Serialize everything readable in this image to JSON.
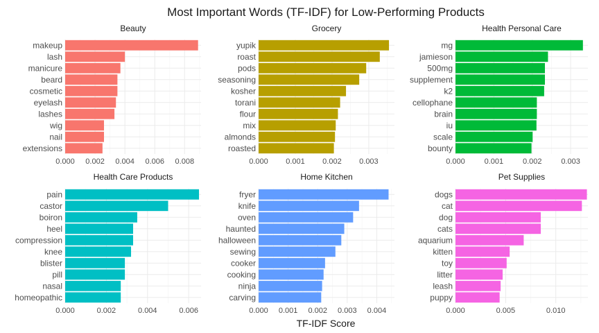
{
  "chart_data": {
    "type": "bar",
    "orientation": "horizontal",
    "title": "Most Important Words (TF-IDF) for Low-Performing Products",
    "xlabel": "TF-IDF Score",
    "ylabel": "",
    "grid": true,
    "legend": "none",
    "facets": [
      {
        "name": "Beauty",
        "color": "#F8766D",
        "xlim": [
          0,
          0.0091
        ],
        "ticks": [
          0,
          0.002,
          0.004,
          0.006,
          0.008
        ],
        "tick_labels": [
          "0.000",
          "0.002",
          "0.004",
          "0.006",
          "0.008"
        ],
        "categories": [
          "makeup",
          "lash",
          "manicure",
          "beard",
          "cosmetic",
          "eyelash",
          "lashes",
          "wig",
          "nail",
          "extensions"
        ],
        "values": [
          0.0089,
          0.004,
          0.0037,
          0.0035,
          0.0035,
          0.0034,
          0.0033,
          0.0026,
          0.0026,
          0.0025
        ]
      },
      {
        "name": "Grocery",
        "color": "#B79F00",
        "xlim": [
          0,
          0.0037
        ],
        "ticks": [
          0,
          0.001,
          0.002,
          0.003
        ],
        "tick_labels": [
          "0.000",
          "0.001",
          "0.002",
          "0.003"
        ],
        "categories": [
          "yupik",
          "roast",
          "pods",
          "seasoning",
          "kosher",
          "torani",
          "flour",
          "mix",
          "almonds",
          "roasted"
        ],
        "values": [
          0.00355,
          0.0033,
          0.00293,
          0.00274,
          0.00238,
          0.00222,
          0.00216,
          0.0021,
          0.00208,
          0.00205
        ]
      },
      {
        "name": "Health  Personal Care",
        "color": "#00BA38",
        "xlim": [
          0,
          0.00345
        ],
        "ticks": [
          0,
          0.001,
          0.002,
          0.003
        ],
        "tick_labels": [
          "0.000",
          "0.001",
          "0.002",
          "0.003"
        ],
        "categories": [
          "mg",
          "jamieson",
          "500mg",
          "supplement",
          "k2",
          "cellophane",
          "brain",
          "iu",
          "scale",
          "bounty"
        ],
        "values": [
          0.00332,
          0.00241,
          0.00233,
          0.00233,
          0.00231,
          0.00212,
          0.00212,
          0.00211,
          0.00201,
          0.00198
        ]
      },
      {
        "name": "Health Care Products",
        "color": "#00BFC4",
        "xlim": [
          0,
          0.0066
        ],
        "ticks": [
          0,
          0.002,
          0.004,
          0.006
        ],
        "tick_labels": [
          "0.000",
          "0.002",
          "0.004",
          "0.006"
        ],
        "categories": [
          "pain",
          "castor",
          "boiron",
          "heel",
          "compression",
          "knee",
          "blister",
          "pill",
          "nasal",
          "homeopathic"
        ],
        "values": [
          0.0065,
          0.005,
          0.0035,
          0.0033,
          0.0033,
          0.0032,
          0.0029,
          0.0029,
          0.0027,
          0.0027
        ]
      },
      {
        "name": "Home  Kitchen",
        "color": "#619CFF",
        "xlim": [
          0,
          0.0046
        ],
        "ticks": [
          0,
          0.001,
          0.002,
          0.003,
          0.004
        ],
        "tick_labels": [
          "0.000",
          "0.001",
          "0.002",
          "0.003",
          "0.004"
        ],
        "categories": [
          "fryer",
          "knife",
          "oven",
          "haunted",
          "halloween",
          "sewing",
          "cooker",
          "cooking",
          "ninja",
          "carving"
        ],
        "values": [
          0.0044,
          0.0034,
          0.0032,
          0.0029,
          0.0028,
          0.0026,
          0.00225,
          0.0022,
          0.00215,
          0.00212
        ]
      },
      {
        "name": "Pet Supplies",
        "color": "#F564E3",
        "xlim": [
          0,
          0.0132
        ],
        "ticks": [
          0,
          0.005,
          0.01
        ],
        "tick_labels": [
          "0.000",
          "0.005",
          "0.010"
        ],
        "categories": [
          "dogs",
          "cat",
          "dog",
          "cats",
          "aquarium",
          "kitten",
          "toy",
          "litter",
          "leash",
          "puppy"
        ],
        "values": [
          0.0131,
          0.0126,
          0.0085,
          0.0085,
          0.0068,
          0.0054,
          0.0051,
          0.0047,
          0.0045,
          0.0044
        ]
      }
    ]
  }
}
